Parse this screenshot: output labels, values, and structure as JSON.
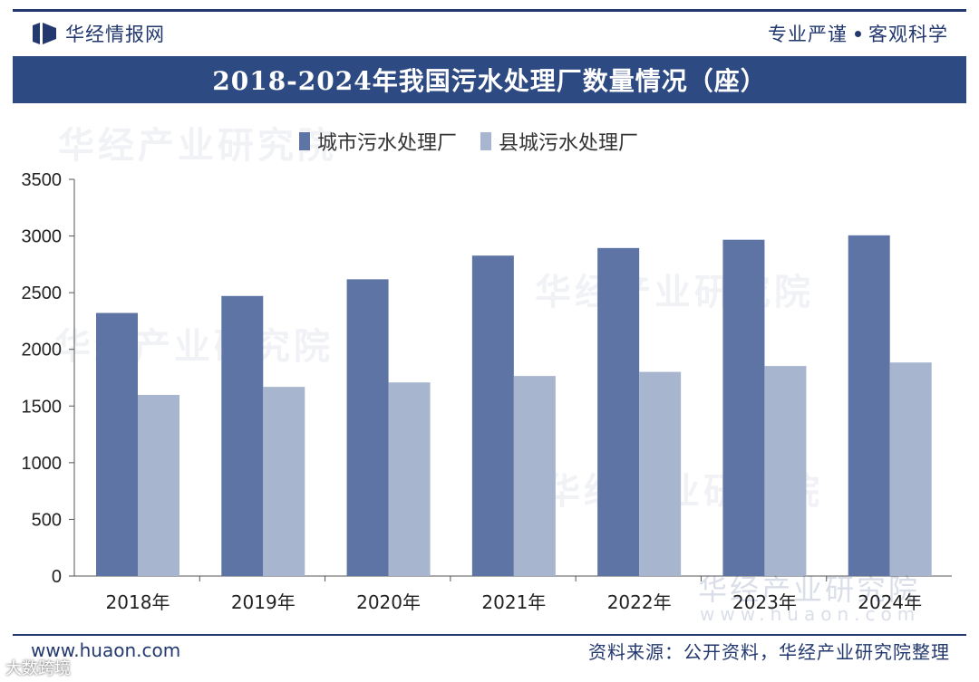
{
  "header": {
    "brand_name": "华经情报网",
    "slogan_left": "专业严谨",
    "slogan_right": "客观科学"
  },
  "chart_data": {
    "type": "bar",
    "title": "2018-2024年我国污水处理厂数量情况（座）",
    "categories": [
      "2018年",
      "2019年",
      "2020年",
      "2021年",
      "2022年",
      "2023年",
      "2024年"
    ],
    "series": [
      {
        "name": "城市污水处理厂",
        "color": "#5d74a4",
        "values": [
          2321,
          2471,
          2618,
          2827,
          2894,
          2967,
          3006
        ]
      },
      {
        "name": "县城污水处理厂",
        "color": "#a8b5cf",
        "values": [
          1598,
          1669,
          1708,
          1765,
          1801,
          1853,
          1884
        ]
      }
    ],
    "ylim": [
      0,
      3500
    ],
    "yticks": [
      0,
      500,
      1000,
      1500,
      2000,
      2500,
      3000,
      3500
    ],
    "grid": false,
    "legend_position": "top"
  },
  "watermarks": {
    "chart_cn": "华经产业研究院",
    "chart_url": "www.huaon.com",
    "corner": "大数跨境"
  },
  "footer": {
    "url": "www.huaon.com",
    "source": "资料来源：公开资料，华经产业研究院整理"
  }
}
